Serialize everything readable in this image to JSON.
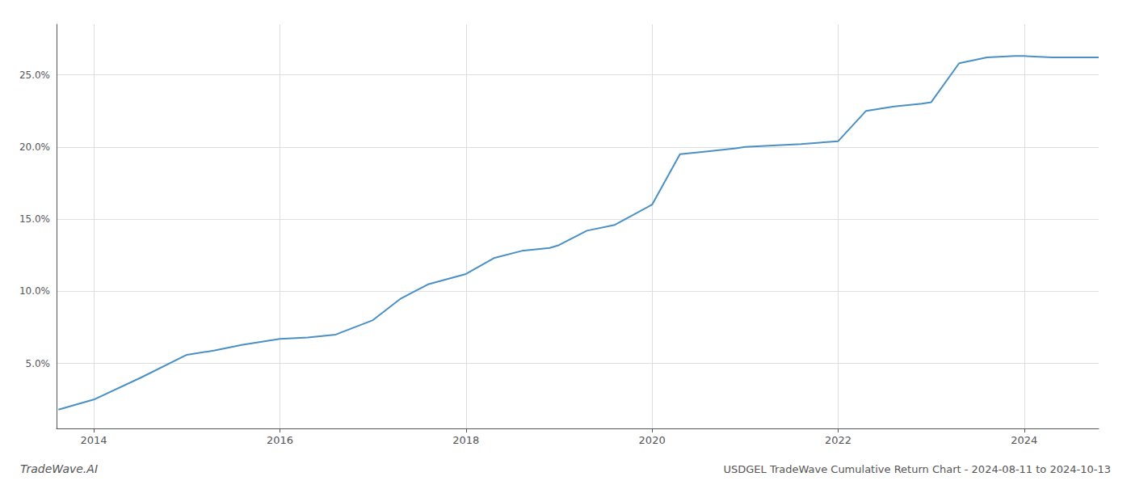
{
  "chart_data": {
    "type": "line",
    "title": "USDGEL TradeWave Cumulative Return Chart - 2024-08-11 to 2024-10-13",
    "annotations": [
      "TradeWave.AI"
    ],
    "color": "#4a90c4",
    "grid": true,
    "x": [
      2013.62,
      2014.0,
      2014.5,
      2015.0,
      2015.3,
      2015.6,
      2016.0,
      2016.3,
      2016.6,
      2017.0,
      2017.3,
      2017.6,
      2018.0,
      2018.3,
      2018.6,
      2018.9,
      2019.0,
      2019.3,
      2019.6,
      2020.0,
      2020.3,
      2020.6,
      2020.9,
      2021.0,
      2021.3,
      2021.6,
      2022.0,
      2022.3,
      2022.6,
      2022.9,
      2023.0,
      2023.3,
      2023.6,
      2023.9,
      2024.0,
      2024.3,
      2024.6,
      2024.8
    ],
    "values": [
      1.8,
      2.5,
      4.0,
      5.6,
      5.9,
      6.3,
      6.7,
      6.8,
      7.0,
      8.0,
      9.5,
      10.5,
      11.2,
      12.3,
      12.8,
      13.0,
      13.2,
      14.2,
      14.6,
      16.0,
      19.5,
      19.7,
      19.9,
      20.0,
      20.1,
      20.2,
      20.4,
      22.5,
      22.8,
      23.0,
      23.1,
      25.8,
      26.2,
      26.3,
      26.3,
      26.2,
      26.2,
      26.2
    ],
    "xlim": [
      2013.6,
      2024.8
    ],
    "xticks": [
      2014,
      2016,
      2018,
      2020,
      2022,
      2024
    ],
    "ylim": [
      0.5,
      28.5
    ],
    "yticks": [
      {
        "value": 5.0,
        "label": "5.0%"
      },
      {
        "value": 10.0,
        "label": "10.0%"
      },
      {
        "value": 15.0,
        "label": "15.0%"
      },
      {
        "value": 20.0,
        "label": "20.0%"
      },
      {
        "value": 25.0,
        "label": "25.0%"
      }
    ]
  }
}
